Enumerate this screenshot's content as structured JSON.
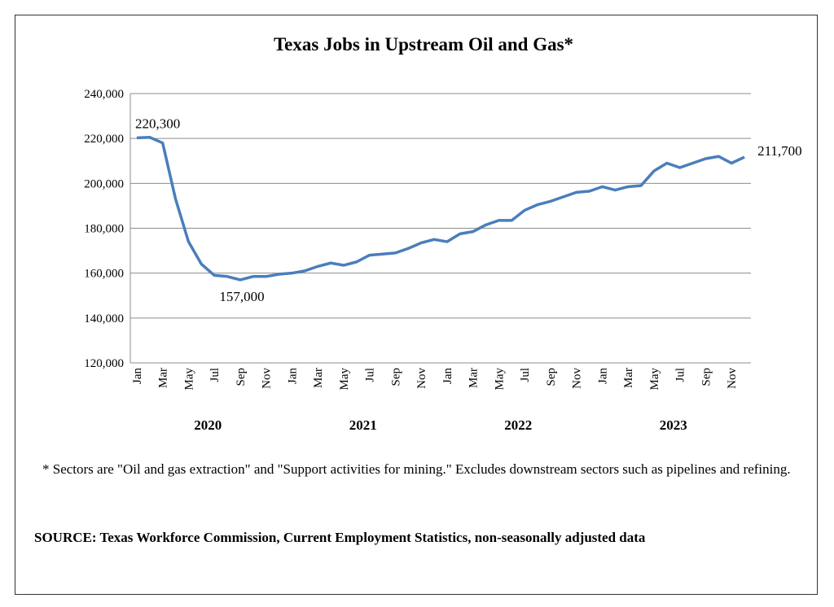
{
  "chart_data": {
    "type": "line",
    "title": "Texas Jobs in Upstream Oil and Gas*",
    "categories": [
      "Jan",
      null,
      "Mar",
      null,
      "May",
      null,
      "Jul",
      null,
      "Sep",
      null,
      "Nov",
      null,
      "Jan",
      null,
      "Mar",
      null,
      "May",
      null,
      "Jul",
      null,
      "Sep",
      null,
      "Nov",
      null,
      "Jan",
      null,
      "Mar",
      null,
      "May",
      null,
      "Jul",
      null,
      "Sep",
      null,
      "Nov",
      null,
      "Jan",
      null,
      "Mar",
      null,
      "May",
      null,
      "Jul",
      null,
      "Sep",
      null,
      "Nov",
      null
    ],
    "x_groups": [
      "2020",
      "2021",
      "2022",
      "2023"
    ],
    "values": [
      220300,
      220500,
      218000,
      193000,
      174000,
      164000,
      159000,
      158500,
      157000,
      158500,
      158500,
      159500,
      160000,
      161000,
      163000,
      164500,
      163500,
      165000,
      168000,
      168500,
      169000,
      171000,
      173500,
      175000,
      174000,
      177500,
      178500,
      181500,
      183500,
      183500,
      188000,
      190500,
      192000,
      194000,
      196000,
      196500,
      198500,
      197000,
      198500,
      199000,
      205500,
      209000,
      207000,
      209000,
      211000,
      212000,
      209000,
      211700
    ],
    "value_labels": [
      "220,300",
      null,
      null,
      null,
      null,
      null,
      null,
      null,
      "157,000",
      null,
      null,
      null,
      null,
      null,
      null,
      null,
      null,
      null,
      null,
      null,
      null,
      null,
      null,
      null,
      null,
      null,
      null,
      null,
      null,
      null,
      null,
      null,
      null,
      null,
      null,
      null,
      null,
      null,
      null,
      null,
      null,
      null,
      null,
      null,
      null,
      null,
      null,
      "211,700"
    ],
    "color": "#4a7ebb",
    "ylim": [
      120000,
      240000
    ],
    "yticks": [
      {
        "value": 120000,
        "label": "120,000"
      },
      {
        "value": 140000,
        "label": "140,000"
      },
      {
        "value": 160000,
        "label": "160,000"
      },
      {
        "value": 180000,
        "label": "180,000"
      },
      {
        "value": 200000,
        "label": "200,000"
      },
      {
        "value": 220000,
        "label": "220,000"
      },
      {
        "value": 240000,
        "label": "240,000"
      }
    ],
    "grid": true
  },
  "footnote": "* Sectors are \"Oil and gas extraction\" and \"Support activities for mining.\"  Excludes downstream sectors such as pipelines and refining.",
  "source": "SOURCE: Texas Workforce Commission, Current Employment Statistics, non-seasonally adjusted data"
}
